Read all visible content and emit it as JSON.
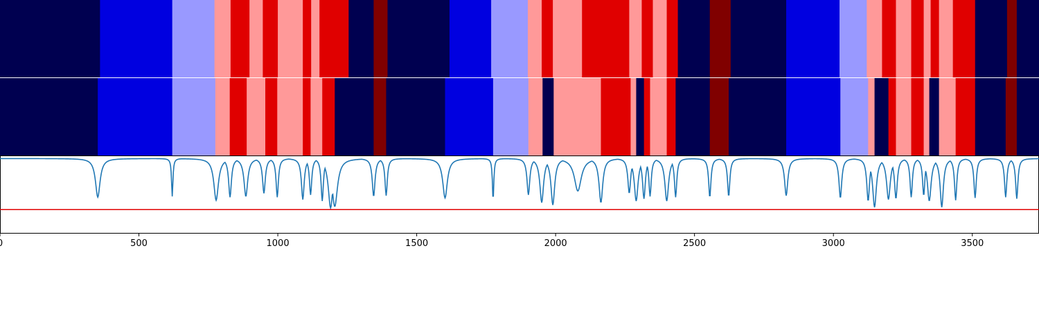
{
  "colors": {
    "c0": "#000050",
    "c1": "#0000e0",
    "c2": "#9999ff",
    "c3": "#ff9999",
    "c4": "#e00000",
    "c5": "#800000",
    "signal": "#1f77b4",
    "threshold": "#e00000",
    "frame": "#000000",
    "separator": "#ffffff"
  },
  "chart_data": [
    {
      "type": "heatmap",
      "xlim": [
        0,
        3740
      ],
      "segments": [
        [
          0,
          360,
          "c0"
        ],
        [
          360,
          620,
          "c1"
        ],
        [
          620,
          772,
          "c2"
        ],
        [
          772,
          830,
          "c3"
        ],
        [
          830,
          898,
          "c4"
        ],
        [
          898,
          946,
          "c3"
        ],
        [
          946,
          1000,
          "c4"
        ],
        [
          1000,
          1090,
          "c3"
        ],
        [
          1090,
          1120,
          "c4"
        ],
        [
          1120,
          1150,
          "c3"
        ],
        [
          1150,
          1255,
          "c4"
        ],
        [
          1255,
          1345,
          "c0"
        ],
        [
          1345,
          1395,
          "c5"
        ],
        [
          1395,
          1618,
          "c0"
        ],
        [
          1618,
          1768,
          "c1"
        ],
        [
          1768,
          1900,
          "c2"
        ],
        [
          1900,
          1950,
          "c3"
        ],
        [
          1950,
          1990,
          "c4"
        ],
        [
          1990,
          2095,
          "c3"
        ],
        [
          2095,
          2265,
          "c4"
        ],
        [
          2265,
          2310,
          "c3"
        ],
        [
          2310,
          2350,
          "c4"
        ],
        [
          2350,
          2400,
          "c3"
        ],
        [
          2400,
          2440,
          "c4"
        ],
        [
          2440,
          2555,
          "c0"
        ],
        [
          2555,
          2630,
          "c5"
        ],
        [
          2630,
          2830,
          "c0"
        ],
        [
          2830,
          3022,
          "c1"
        ],
        [
          3022,
          3120,
          "c2"
        ],
        [
          3120,
          3175,
          "c3"
        ],
        [
          3175,
          3225,
          "c4"
        ],
        [
          3225,
          3280,
          "c3"
        ],
        [
          3280,
          3325,
          "c4"
        ],
        [
          3325,
          3350,
          "c3"
        ],
        [
          3350,
          3380,
          "c4"
        ],
        [
          3380,
          3430,
          "c3"
        ],
        [
          3430,
          3510,
          "c4"
        ],
        [
          3510,
          3625,
          "c0"
        ],
        [
          3625,
          3660,
          "c5"
        ],
        [
          3660,
          3740,
          "c0"
        ]
      ]
    },
    {
      "type": "heatmap",
      "xlim": [
        0,
        3740
      ],
      "segments": [
        [
          0,
          352,
          "c0"
        ],
        [
          352,
          620,
          "c1"
        ],
        [
          620,
          775,
          "c2"
        ],
        [
          775,
          827,
          "c3"
        ],
        [
          827,
          888,
          "c4"
        ],
        [
          888,
          955,
          "c3"
        ],
        [
          955,
          998,
          "c4"
        ],
        [
          998,
          1090,
          "c3"
        ],
        [
          1090,
          1118,
          "c4"
        ],
        [
          1118,
          1160,
          "c3"
        ],
        [
          1160,
          1205,
          "c4"
        ],
        [
          1205,
          1345,
          "c0"
        ],
        [
          1345,
          1390,
          "c5"
        ],
        [
          1390,
          1602,
          "c0"
        ],
        [
          1602,
          1775,
          "c1"
        ],
        [
          1775,
          1902,
          "c2"
        ],
        [
          1902,
          1953,
          "c3"
        ],
        [
          1953,
          1993,
          "c0"
        ],
        [
          1993,
          2163,
          "c3"
        ],
        [
          2163,
          2270,
          "c4"
        ],
        [
          2270,
          2290,
          "c3"
        ],
        [
          2290,
          2318,
          "c0"
        ],
        [
          2318,
          2340,
          "c4"
        ],
        [
          2340,
          2400,
          "c3"
        ],
        [
          2400,
          2432,
          "c4"
        ],
        [
          2432,
          2555,
          "c0"
        ],
        [
          2555,
          2623,
          "c5"
        ],
        [
          2623,
          2830,
          "c0"
        ],
        [
          2830,
          3025,
          "c1"
        ],
        [
          3025,
          3125,
          "c2"
        ],
        [
          3125,
          3148,
          "c3"
        ],
        [
          3148,
          3198,
          "c0"
        ],
        [
          3198,
          3225,
          "c4"
        ],
        [
          3225,
          3280,
          "c3"
        ],
        [
          3280,
          3325,
          "c4"
        ],
        [
          3325,
          3345,
          "c3"
        ],
        [
          3345,
          3380,
          "c0"
        ],
        [
          3380,
          3440,
          "c3"
        ],
        [
          3440,
          3510,
          "c4"
        ],
        [
          3510,
          3620,
          "c0"
        ],
        [
          3620,
          3660,
          "c5"
        ],
        [
          3660,
          3740,
          "c0"
        ]
      ]
    },
    {
      "type": "line",
      "xlim": [
        0,
        3740
      ],
      "ylim": [
        0,
        1
      ],
      "baseline": 0.97,
      "threshold": 0.31,
      "dips": [
        [
          352,
          0.47,
          10
        ],
        [
          620,
          0.48,
          3
        ],
        [
          778,
          0.43,
          10
        ],
        [
          828,
          0.47,
          6
        ],
        [
          885,
          0.48,
          8
        ],
        [
          950,
          0.52,
          6
        ],
        [
          998,
          0.47,
          5
        ],
        [
          1090,
          0.44,
          6
        ],
        [
          1118,
          0.5,
          5
        ],
        [
          1160,
          0.42,
          5
        ],
        [
          1190,
          0.33,
          10
        ],
        [
          1205,
          0.35,
          12
        ],
        [
          1345,
          0.48,
          6
        ],
        [
          1390,
          0.49,
          5
        ],
        [
          1602,
          0.46,
          10
        ],
        [
          1775,
          0.43,
          3
        ],
        [
          1902,
          0.5,
          6
        ],
        [
          1950,
          0.4,
          8
        ],
        [
          1990,
          0.37,
          8
        ],
        [
          2080,
          0.55,
          15
        ],
        [
          2163,
          0.4,
          8
        ],
        [
          2265,
          0.52,
          6
        ],
        [
          2290,
          0.42,
          8
        ],
        [
          2318,
          0.45,
          6
        ],
        [
          2340,
          0.48,
          5
        ],
        [
          2400,
          0.42,
          8
        ],
        [
          2432,
          0.47,
          5
        ],
        [
          2555,
          0.47,
          5
        ],
        [
          2623,
          0.48,
          5
        ],
        [
          2830,
          0.49,
          7
        ],
        [
          3025,
          0.46,
          6
        ],
        [
          3125,
          0.42,
          6
        ],
        [
          3148,
          0.34,
          8
        ],
        [
          3198,
          0.44,
          8
        ],
        [
          3225,
          0.45,
          6
        ],
        [
          3280,
          0.47,
          5
        ],
        [
          3325,
          0.49,
          5
        ],
        [
          3345,
          0.42,
          8
        ],
        [
          3390,
          0.34,
          7
        ],
        [
          3440,
          0.43,
          5
        ],
        [
          3510,
          0.46,
          5
        ],
        [
          3620,
          0.47,
          5
        ],
        [
          3660,
          0.45,
          5
        ]
      ],
      "xticks": [
        0,
        500,
        1000,
        1500,
        2000,
        2500,
        3000,
        3500
      ],
      "xtick_labels": [
        "0",
        "500",
        "1000",
        "1500",
        "2000",
        "2500",
        "3000",
        "3500"
      ]
    }
  ]
}
